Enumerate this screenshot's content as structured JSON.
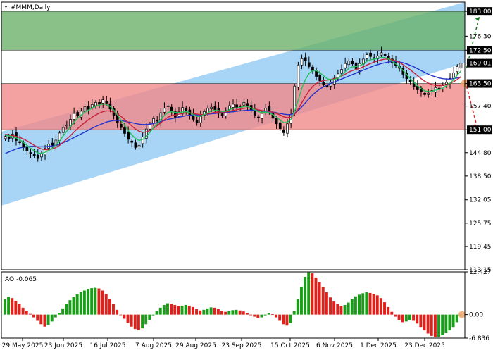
{
  "header": {
    "symbol_label": "#MMM,Daily"
  },
  "colors": {
    "up_candle": "#000000",
    "down_candle": "#000000",
    "ma_fast": "#22c25a",
    "ma_mid": "#c8203a",
    "ma_slow": "#2233cc",
    "channel": "#99ccf5",
    "target_zone": "#6cb26c",
    "stop_zone": "#f28a8a",
    "ao_up": "#1a9e1a",
    "ao_down": "#e0201a",
    "price_tag_bg": "#000000",
    "price_tag_text": "#ffffff",
    "arrow_up": "#1f7a1f",
    "arrow_down": "#e02020"
  },
  "chart_data": [
    {
      "type": "candlestick",
      "title": "#MMM,Daily",
      "ylim": [
        113.15,
        185.5
      ],
      "y_ticks": [
        "183.00",
        "176.30",
        "172.50",
        "169.01",
        "163.50",
        "157.40",
        "151.00",
        "144.80",
        "138.50",
        "132.05",
        "125.75",
        "119.45",
        "113.15"
      ],
      "highlight_levels": [
        "183.00",
        "172.50",
        "169.01",
        "163.50",
        "151.00"
      ],
      "current_price": "169.01",
      "x_tick_labels": [
        "29 May 2025",
        "23 Jun 2025",
        "16 Jul 2025",
        "7 Aug 2025",
        "29 Aug 2025",
        "23 Sep 2025",
        "15 Oct 2025",
        "6 Nov 2025",
        "1 Dec 2025",
        "23 Dec 2025"
      ],
      "zones": [
        {
          "name": "target",
          "from": 172.5,
          "to": 183.0
        },
        {
          "name": "stop",
          "from": 151.0,
          "to": 163.5
        }
      ],
      "channel": {
        "start": [
          0,
          130.5,
          150.5
        ],
        "end": [
          150,
          169.0,
          185.5
        ]
      },
      "closes": [
        149.2,
        148.6,
        149.8,
        148.1,
        147.5,
        146.2,
        145.3,
        144.6,
        144.0,
        143.2,
        144.5,
        146.0,
        147.1,
        146.8,
        148.2,
        150.1,
        151.6,
        152.3,
        153.8,
        155.4,
        154.9,
        156.0,
        157.2,
        156.5,
        157.8,
        158.4,
        157.9,
        159.1,
        158.2,
        156.6,
        154.9,
        152.8,
        151.6,
        150.0,
        148.4,
        147.6,
        146.2,
        146.8,
        149.0,
        151.2,
        152.5,
        154.0,
        153.4,
        155.6,
        156.8,
        157.4,
        155.9,
        154.4,
        155.8,
        157.0,
        156.2,
        155.1,
        153.8,
        152.9,
        154.6,
        155.9,
        156.8,
        157.1,
        156.4,
        155.6,
        154.8,
        156.2,
        157.5,
        157.9,
        156.8,
        157.2,
        158.4,
        157.6,
        156.1,
        154.9,
        154.2,
        155.4,
        156.8,
        155.9,
        154.1,
        152.6,
        151.3,
        150.2,
        152.6,
        155.0,
        162.8,
        168.5,
        170.2,
        169.6,
        168.1,
        166.9,
        165.4,
        164.2,
        163.1,
        162.5,
        163.8,
        164.9,
        166.1,
        167.3,
        168.9,
        169.6,
        168.8,
        167.5,
        168.9,
        170.1,
        171.3,
        170.8,
        170.2,
        170.9,
        171.8,
        171.1,
        170.0,
        169.1,
        168.4,
        167.6,
        166.0,
        164.8,
        163.9,
        162.6,
        161.8,
        161.2,
        160.5,
        160.9,
        161.6,
        162.4,
        161.9,
        162.9,
        163.8,
        164.9,
        166.4,
        168.1,
        169.01
      ],
      "ma_fast": [
        149.5,
        149.3,
        149.1,
        148.8,
        148.3,
        147.6,
        146.8,
        146.0,
        145.3,
        144.7,
        144.6,
        144.9,
        145.4,
        146.0,
        146.9,
        148.0,
        149.3,
        150.6,
        151.9,
        153.1,
        154.1,
        155.0,
        155.8,
        156.3,
        156.9,
        157.4,
        157.7,
        158.0,
        157.9,
        157.3,
        156.3,
        155.0,
        153.6,
        152.2,
        150.8,
        149.6,
        148.6,
        148.1,
        148.4,
        149.2,
        150.3,
        151.6,
        152.6,
        153.8,
        154.9,
        155.7,
        155.9,
        155.7,
        155.6,
        155.8,
        155.9,
        155.6,
        155.1,
        154.6,
        154.7,
        155.1,
        155.6,
        156.1,
        156.3,
        156.2,
        155.9,
        156.0,
        156.4,
        156.8,
        156.9,
        157.0,
        157.3,
        157.3,
        156.9,
        156.4,
        155.9,
        155.7,
        155.8,
        155.6,
        155.1,
        154.4,
        153.6,
        152.9,
        153.0,
        153.8,
        156.0,
        159.0,
        162.2,
        164.6,
        166.2,
        167.0,
        167.0,
        166.4,
        165.6,
        164.8,
        164.5,
        164.6,
        165.0,
        165.7,
        166.7,
        167.6,
        168.0,
        168.1,
        168.3,
        168.8,
        169.5,
        169.9,
        170.1,
        170.3,
        170.6,
        170.5,
        170.1,
        169.5,
        168.8,
        168.0,
        167.0,
        165.9,
        164.8,
        163.8,
        162.9,
        162.1,
        161.5,
        161.3,
        161.4,
        161.7,
        161.9,
        162.3,
        162.9,
        163.6,
        164.6,
        165.8,
        166.9
      ],
      "ma_mid": [
        149.8,
        149.6,
        149.4,
        149.2,
        148.9,
        148.5,
        148.0,
        147.4,
        146.8,
        146.2,
        145.8,
        145.6,
        145.6,
        145.8,
        146.2,
        146.8,
        147.6,
        148.5,
        149.4,
        150.4,
        151.3,
        152.2,
        153.0,
        153.7,
        154.4,
        155.0,
        155.5,
        155.9,
        156.1,
        156.1,
        155.8,
        155.3,
        154.6,
        153.8,
        152.9,
        152.0,
        151.2,
        150.6,
        150.3,
        150.4,
        150.8,
        151.4,
        152.1,
        152.9,
        153.7,
        154.4,
        154.8,
        155.0,
        155.2,
        155.4,
        155.6,
        155.6,
        155.4,
        155.2,
        155.1,
        155.1,
        155.3,
        155.5,
        155.7,
        155.8,
        155.8,
        155.8,
        156.0,
        156.2,
        156.4,
        156.6,
        156.8,
        156.9,
        156.9,
        156.7,
        156.4,
        156.2,
        156.1,
        156.0,
        155.8,
        155.4,
        155.0,
        154.5,
        154.3,
        154.4,
        155.2,
        156.6,
        158.3,
        160.0,
        161.5,
        162.7,
        163.5,
        164.0,
        164.3,
        164.4,
        164.6,
        164.8,
        165.1,
        165.5,
        166.0,
        166.6,
        167.0,
        167.3,
        167.6,
        168.0,
        168.5,
        168.9,
        169.3,
        169.6,
        169.9,
        170.1,
        170.1,
        169.9,
        169.6,
        169.2,
        168.6,
        167.9,
        167.2,
        166.4,
        165.6,
        164.8,
        164.1,
        163.6,
        163.2,
        163.0,
        162.9,
        163.0,
        163.2,
        163.5,
        164.0,
        164.6,
        165.3
      ],
      "ma_slow": [
        144.6,
        145.0,
        145.4,
        145.8,
        146.1,
        146.3,
        146.4,
        146.5,
        146.5,
        146.4,
        146.4,
        146.4,
        146.5,
        146.6,
        146.8,
        147.1,
        147.5,
        147.9,
        148.4,
        148.9,
        149.4,
        149.9,
        150.4,
        150.9,
        151.4,
        151.9,
        152.3,
        152.7,
        153.1,
        153.3,
        153.5,
        153.5,
        153.5,
        153.3,
        153.1,
        152.9,
        152.7,
        152.5,
        152.4,
        152.4,
        152.5,
        152.7,
        152.9,
        153.2,
        153.5,
        153.8,
        154.0,
        154.2,
        154.4,
        154.6,
        154.8,
        154.9,
        155.0,
        155.0,
        155.0,
        155.1,
        155.2,
        155.3,
        155.4,
        155.5,
        155.6,
        155.7,
        155.8,
        155.9,
        156.0,
        156.1,
        156.2,
        156.3,
        156.3,
        156.3,
        156.2,
        156.1,
        156.0,
        155.9,
        155.8,
        155.6,
        155.4,
        155.2,
        155.1,
        155.1,
        155.5,
        156.2,
        157.2,
        158.3,
        159.4,
        160.4,
        161.3,
        162.0,
        162.6,
        163.1,
        163.5,
        163.9,
        164.3,
        164.7,
        165.1,
        165.5,
        165.9,
        166.3,
        166.7,
        167.1,
        167.5,
        167.9,
        168.3,
        168.6,
        168.9,
        169.1,
        169.3,
        169.4,
        169.4,
        169.3,
        169.1,
        168.8,
        168.4,
        168.0,
        167.5,
        167.0,
        166.5,
        166.0,
        165.6,
        165.3,
        165.0,
        164.8,
        164.7,
        164.7,
        164.8,
        165.0,
        165.3
      ]
    },
    {
      "type": "bar",
      "title": "AO -0.065",
      "ylim": [
        -6.836,
        12.427
      ],
      "y_ticks": [
        "12.427",
        "0.00",
        "-6.836"
      ],
      "values": [
        4.5,
        5.2,
        4.8,
        4.0,
        3.0,
        2.0,
        1.0,
        0.2,
        -0.8,
        -1.8,
        -2.8,
        -3.5,
        -3.0,
        -2.0,
        -0.8,
        0.5,
        1.8,
        3.0,
        4.2,
        5.1,
        5.9,
        6.5,
        7.0,
        7.4,
        7.7,
        7.8,
        7.6,
        7.0,
        6.0,
        4.6,
        3.0,
        1.4,
        0.0,
        -1.2,
        -2.4,
        -3.5,
        -4.2,
        -4.5,
        -4.0,
        -2.8,
        -1.5,
        -0.2,
        1.0,
        2.0,
        2.8,
        3.3,
        3.2,
        2.8,
        2.5,
        2.6,
        2.8,
        2.6,
        2.2,
        1.6,
        1.2,
        1.4,
        1.8,
        2.1,
        2.0,
        1.6,
        1.1,
        0.8,
        1.0,
        1.3,
        1.4,
        1.2,
        0.9,
        0.5,
        0.0,
        -0.6,
        -1.0,
        -0.8,
        -0.2,
        0.4,
        0.1,
        -0.8,
        -1.8,
        -2.8,
        -3.2,
        -2.5,
        1.0,
        4.5,
        8.0,
        11.0,
        12.3,
        12.0,
        10.8,
        9.5,
        8.0,
        6.5,
        5.0,
        3.8,
        3.0,
        2.5,
        2.8,
        3.5,
        4.5,
        5.3,
        5.8,
        6.2,
        6.5,
        6.3,
        6.0,
        5.6,
        4.8,
        3.6,
        2.2,
        0.8,
        -0.6,
        -1.6,
        -2.2,
        -2.0,
        -1.6,
        -1.8,
        -2.6,
        -3.6,
        -4.6,
        -5.5,
        -6.2,
        -6.6,
        -6.5,
        -6.0,
        -5.4,
        -4.6,
        -3.6,
        -2.2,
        -0.065
      ],
      "value_label": "-0.065"
    }
  ]
}
